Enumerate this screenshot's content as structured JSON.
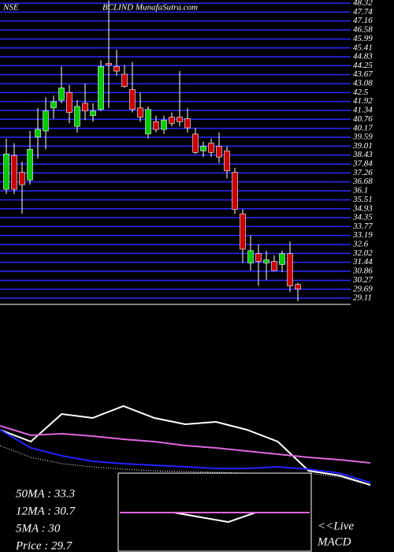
{
  "chart_data": [
    {
      "type": "candlestick",
      "exchange": "NSE",
      "title": "BCLIND MunafaSutra.com",
      "open": [
        36.2,
        38.4,
        37.3,
        36.8,
        39.6,
        40.0,
        41.5,
        42.0,
        42.5,
        40.3,
        41.8,
        41.0,
        41.4,
        44.4,
        44.2,
        43.7,
        42.7,
        41.5,
        39.8,
        40.6,
        40.1,
        40.9,
        40.9,
        40.8,
        39.8,
        38.7,
        39.2,
        39.0,
        38.7,
        37.3,
        34.6,
        31.4,
        32.0,
        31.4,
        31.5,
        31.3,
        32.0,
        30.0
      ],
      "high": [
        39.5,
        39.2,
        38.0,
        40.0,
        41.5,
        42.2,
        42.3,
        44.2,
        43.0,
        42.0,
        43.1,
        41.8,
        44.6,
        48.5,
        45.3,
        44.3,
        44.5,
        42.5,
        41.6,
        41.0,
        41.0,
        41.2,
        43.9,
        41.5,
        40.2,
        39.3,
        39.5,
        39.9,
        39.0,
        37.6,
        34.9,
        33.2,
        32.6,
        32.2,
        31.9,
        32.2,
        32.8,
        30.1
      ],
      "low": [
        35.9,
        35.9,
        34.6,
        36.5,
        38.2,
        38.8,
        40.8,
        41.8,
        40.5,
        39.9,
        40.7,
        40.6,
        41.3,
        41.5,
        43.6,
        42.8,
        41.2,
        40.6,
        39.5,
        39.9,
        39.8,
        40.3,
        40.3,
        39.9,
        38.5,
        38.3,
        38.3,
        37.9,
        36.9,
        34.6,
        31.4,
        30.9,
        29.9,
        30.3,
        30.9,
        30.8,
        29.5,
        28.9
      ],
      "close": [
        38.5,
        36.2,
        36.5,
        38.8,
        40.1,
        41.3,
        41.9,
        42.8,
        41.2,
        41.6,
        41.3,
        41.3,
        44.2,
        44.3,
        43.9,
        42.9,
        41.4,
        40.9,
        41.4,
        40.1,
        40.7,
        40.5,
        40.6,
        40.2,
        38.6,
        39.0,
        38.6,
        38.3,
        37.4,
        34.9,
        32.3,
        32.2,
        31.5,
        31.6,
        30.9,
        32.0,
        29.9,
        29.7
      ],
      "up_color": "#00cc00",
      "down_color": "#cc0000",
      "grid": true,
      "grid_color": "#2a2aff",
      "ylim": [
        28.7,
        48.53
      ],
      "yticks": [
        48.32,
        47.74,
        47.16,
        46.58,
        45.99,
        45.41,
        44.83,
        44.25,
        43.67,
        43.08,
        42.5,
        41.92,
        41.34,
        40.76,
        40.17,
        39.59,
        39.01,
        38.43,
        37.84,
        37.26,
        36.68,
        36.1,
        35.51,
        34.93,
        34.35,
        33.77,
        33.19,
        32.6,
        32.02,
        31.44,
        30.86,
        30.27,
        29.69,
        29.11
      ]
    },
    {
      "type": "line",
      "x": [
        0,
        40,
        80,
        120,
        160,
        200,
        240,
        280,
        320,
        360,
        400,
        440,
        480
      ],
      "xlim": [
        0,
        480
      ],
      "ylim": [
        0,
        130
      ],
      "series": [
        {
          "color": "#ffffff",
          "values": [
            75,
            60,
            95,
            90,
            105,
            90,
            82,
            85,
            75,
            60,
            23,
            17,
            5
          ]
        },
        {
          "color": "#dd66dd",
          "values": [
            80,
            68,
            70,
            67,
            63,
            60,
            55,
            52,
            48,
            44,
            40,
            37,
            33
          ]
        },
        {
          "color": "#2222ff",
          "values": [
            75,
            52,
            42,
            35,
            32,
            30,
            28,
            26,
            26,
            28,
            25,
            20,
            8
          ]
        },
        {
          "color": "#ffffff",
          "dashed": true,
          "values": [
            55,
            40,
            32,
            28,
            25,
            23,
            22,
            21,
            20,
            20,
            20,
            15,
            5
          ]
        }
      ],
      "annotations": [
        "50MA : 33.3",
        "12MA : 30.7",
        "5MA : 30",
        "Price   : 29.7"
      ]
    },
    {
      "type": "line",
      "title": "MACD",
      "note": "<<Live",
      "x": [
        0,
        1,
        2,
        3,
        4,
        5,
        6,
        7
      ],
      "xlim": [
        0,
        7
      ],
      "ylim": [
        -20,
        20
      ],
      "series": [
        {
          "color": "#ffffff",
          "values": [
            0,
            0,
            0,
            -3,
            -6,
            0,
            0,
            0
          ]
        },
        {
          "color": "#dd66dd",
          "values": [
            0,
            0,
            0,
            0,
            0,
            0,
            0,
            0
          ]
        }
      ]
    }
  ]
}
